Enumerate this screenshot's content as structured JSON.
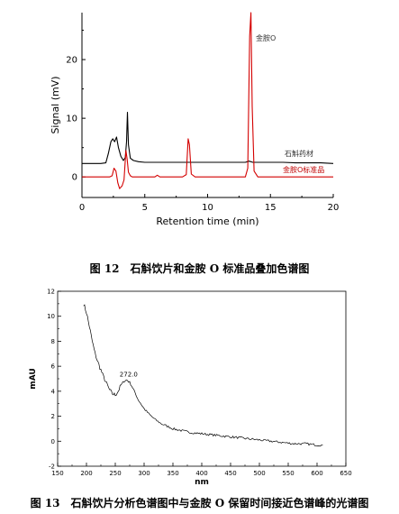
{
  "chart_data": [
    {
      "type": "line",
      "xlabel": "Retention time (min)",
      "ylabel": "Signal (mV)",
      "xlim": [
        0,
        20
      ],
      "ylim": [
        -3.5,
        28
      ],
      "xticks": [
        0,
        5,
        10,
        15,
        20
      ],
      "yticks": [
        0,
        10,
        20
      ],
      "grid": false,
      "series": [
        {
          "name": "石斛药材",
          "color": "#000000",
          "x": [
            0,
            0.5,
            1.0,
            1.5,
            1.9,
            2.1,
            2.3,
            2.45,
            2.6,
            2.75,
            2.9,
            3.1,
            3.3,
            3.45,
            3.55,
            3.62,
            3.7,
            3.85,
            4.1,
            4.5,
            5,
            6,
            7,
            8,
            9,
            10,
            11,
            12,
            13,
            13.3,
            13.6,
            14,
            15,
            16,
            17,
            18,
            19,
            20
          ],
          "values": [
            2.3,
            2.3,
            2.3,
            2.3,
            2.4,
            4.0,
            6.0,
            6.5,
            6.0,
            6.8,
            5.0,
            3.5,
            2.8,
            3.3,
            6.0,
            11.0,
            5.5,
            3.2,
            2.8,
            2.6,
            2.5,
            2.5,
            2.5,
            2.5,
            2.5,
            2.5,
            2.5,
            2.5,
            2.5,
            2.7,
            2.5,
            2.5,
            2.5,
            2.5,
            2.4,
            2.4,
            2.4,
            2.3
          ]
        },
        {
          "name": "金胺O标准品",
          "color": "#d40000",
          "x": [
            0,
            1,
            2,
            2.2,
            2.4,
            2.55,
            2.7,
            2.85,
            3.0,
            3.2,
            3.35,
            3.5,
            3.6,
            3.7,
            3.85,
            4.0,
            4.5,
            5,
            5.8,
            6.0,
            6.2,
            7,
            8,
            8.3,
            8.45,
            8.55,
            8.7,
            9,
            10,
            11,
            12,
            13,
            13.2,
            13.35,
            13.45,
            13.55,
            13.7,
            14,
            15,
            16,
            17,
            18,
            19,
            20
          ],
          "values": [
            0,
            0,
            0,
            0,
            0.2,
            1.5,
            1.0,
            -1.0,
            -2.0,
            -1.5,
            -0.5,
            4.5,
            3.0,
            0.8,
            0.2,
            0,
            0,
            0,
            0,
            0.3,
            0,
            0,
            0,
            0.4,
            6.5,
            5.5,
            0.5,
            0,
            0,
            0,
            0,
            0,
            1.5,
            24.0,
            28.0,
            12.0,
            1.0,
            0,
            0,
            0,
            0,
            0,
            0,
            0
          ]
        }
      ],
      "annotations": [
        "金胺O",
        "石斛药材",
        "金胺O标准品"
      ]
    },
    {
      "type": "line",
      "xlabel": "nm",
      "ylabel": "mAU",
      "xlim": [
        150,
        650
      ],
      "ylim": [
        -2,
        12
      ],
      "xticks": [
        150,
        200,
        250,
        300,
        350,
        400,
        450,
        500,
        550,
        600,
        650
      ],
      "yticks": [
        -2,
        0,
        2,
        4,
        6,
        8,
        10,
        12
      ],
      "grid": false,
      "series": [
        {
          "color": "#000000",
          "x": [
            195,
            200,
            205,
            210,
            215,
            220,
            225,
            230,
            235,
            240,
            245,
            250,
            255,
            260,
            265,
            270,
            275,
            280,
            285,
            290,
            300,
            310,
            320,
            330,
            340,
            350,
            360,
            370,
            380,
            400,
            420,
            440,
            460,
            480,
            500,
            520,
            540,
            560,
            580,
            600,
            610
          ],
          "values": [
            11.0,
            10.3,
            9.2,
            8.0,
            7.0,
            6.3,
            5.7,
            5.1,
            4.6,
            4.1,
            3.8,
            3.7,
            4.0,
            4.5,
            4.8,
            4.9,
            4.7,
            4.3,
            3.8,
            3.3,
            2.6,
            2.1,
            1.7,
            1.4,
            1.2,
            1.0,
            0.9,
            0.8,
            0.7,
            0.6,
            0.5,
            0.4,
            0.3,
            0.2,
            0.1,
            0.0,
            -0.1,
            -0.2,
            -0.2,
            -0.3,
            -0.3
          ]
        }
      ],
      "annotations": [
        "272.0"
      ]
    }
  ],
  "captions": {
    "fig12": "图 12　石斛饮片和金胺 O 标准品叠加色谱图",
    "fig13": "图 13　石斛饮片分析色谱图中与金胺 O 保留时间接近色谱峰的光谱图"
  }
}
